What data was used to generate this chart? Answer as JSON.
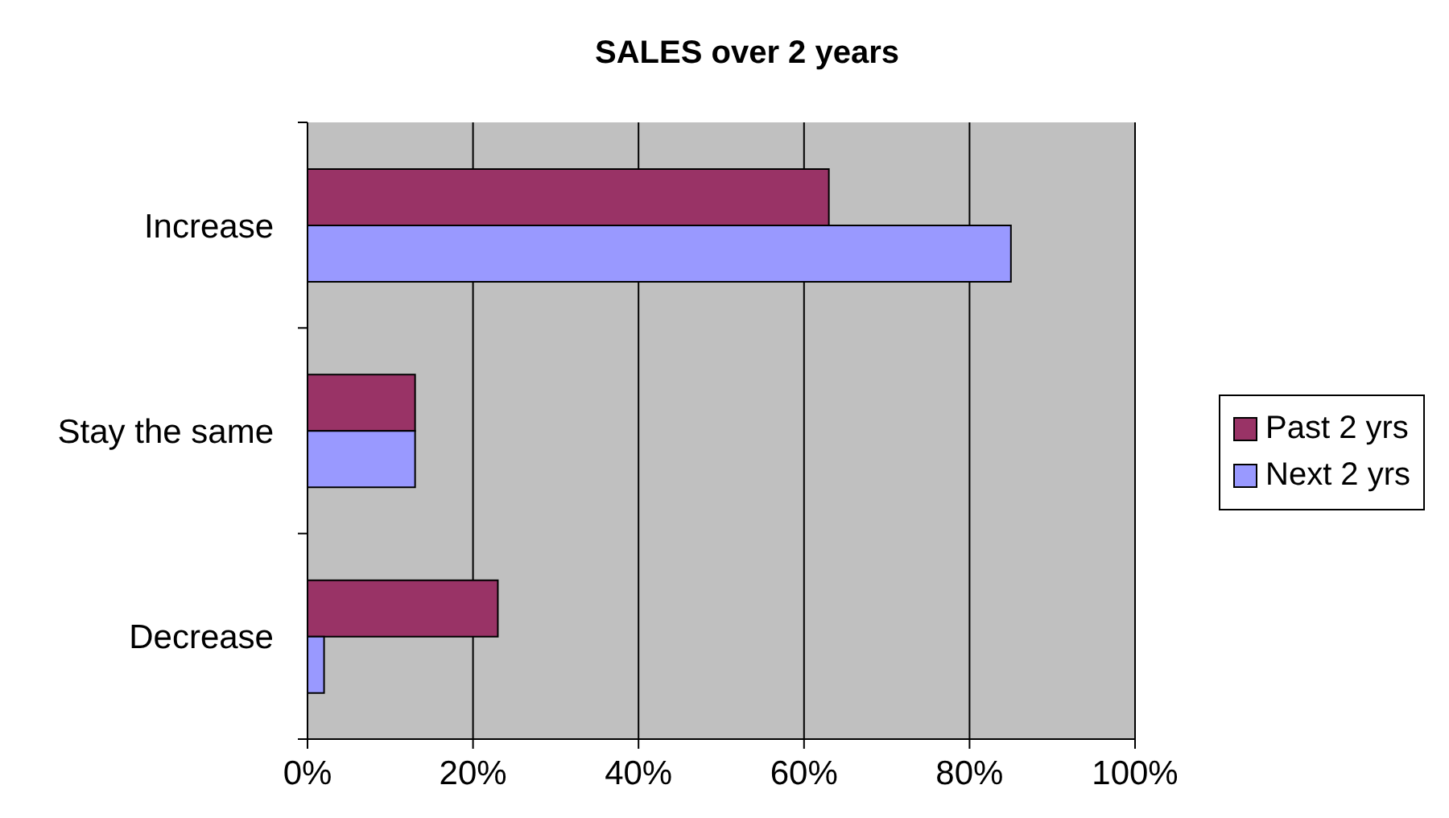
{
  "chart_data": {
    "type": "bar",
    "orientation": "horizontal",
    "title": "SALES over 2 years",
    "categories": [
      "Increase",
      "Stay the same",
      "Decrease"
    ],
    "series": [
      {
        "name": "Past 2 yrs",
        "color": "#993366",
        "values": [
          63,
          13,
          23
        ]
      },
      {
        "name": "Next 2 yrs",
        "color": "#9999ff",
        "values": [
          85,
          13,
          2
        ]
      }
    ],
    "xlim": [
      0,
      100
    ],
    "xticks": [
      {
        "value": 0,
        "label": "0%"
      },
      {
        "value": 20,
        "label": "20%"
      },
      {
        "value": 40,
        "label": "40%"
      },
      {
        "value": 60,
        "label": "60%"
      },
      {
        "value": 80,
        "label": "80%"
      },
      {
        "value": 100,
        "label": "100%"
      }
    ],
    "grid": "x",
    "legend": "right"
  }
}
